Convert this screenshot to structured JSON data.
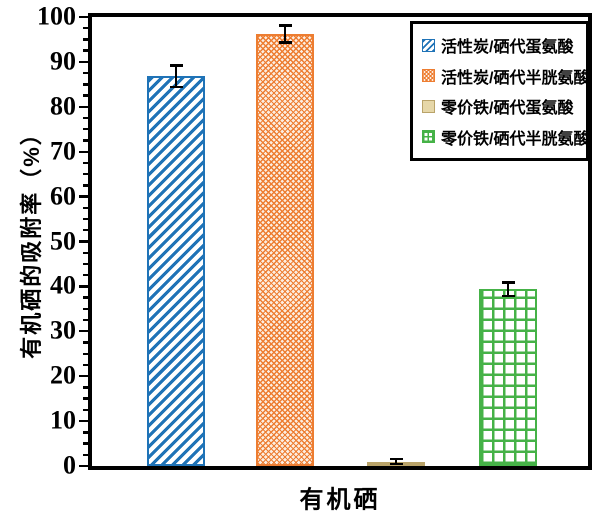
{
  "chart_data": {
    "type": "bar",
    "title": "",
    "xlabel": "有机硒",
    "ylabel": "有机硒的吸附率（%）",
    "ylim": [
      0,
      100
    ],
    "ytick_step": 10,
    "minor_tick_step": 2.5,
    "grid": false,
    "legend_position": "top-right",
    "categories": [
      "有机硒"
    ],
    "series": [
      {
        "key": "activated-carbon-selenomethionine",
        "name": "活性炭/硒代蛋氨酸",
        "value": 86.8,
        "error": 2.4,
        "color": "#1f73b7",
        "pattern": "diagonal"
      },
      {
        "key": "activated-carbon-selenocysteine",
        "name": "活性炭/硒代半胱氨酸",
        "value": 96.2,
        "error": 1.9,
        "color": "#ed7d31",
        "pattern": "dots",
        "tint": "#fcede0"
      },
      {
        "key": "zero-valent-iron-selenomethionine",
        "name": "零价铁/硒代蛋氨酸",
        "value": 1.0,
        "error": 0.6,
        "color": "#b9a369",
        "fill": "#e6d7a8",
        "pattern": "solid"
      },
      {
        "key": "zero-valent-iron-selenocysteine",
        "name": "零价铁/硒代半胱氨酸",
        "value": 39.4,
        "error": 1.5,
        "color": "#45b247",
        "pattern": "grid"
      }
    ]
  },
  "colors": {
    "axis": "#000000",
    "error_bar": "#000000",
    "background": "#ffffff"
  }
}
